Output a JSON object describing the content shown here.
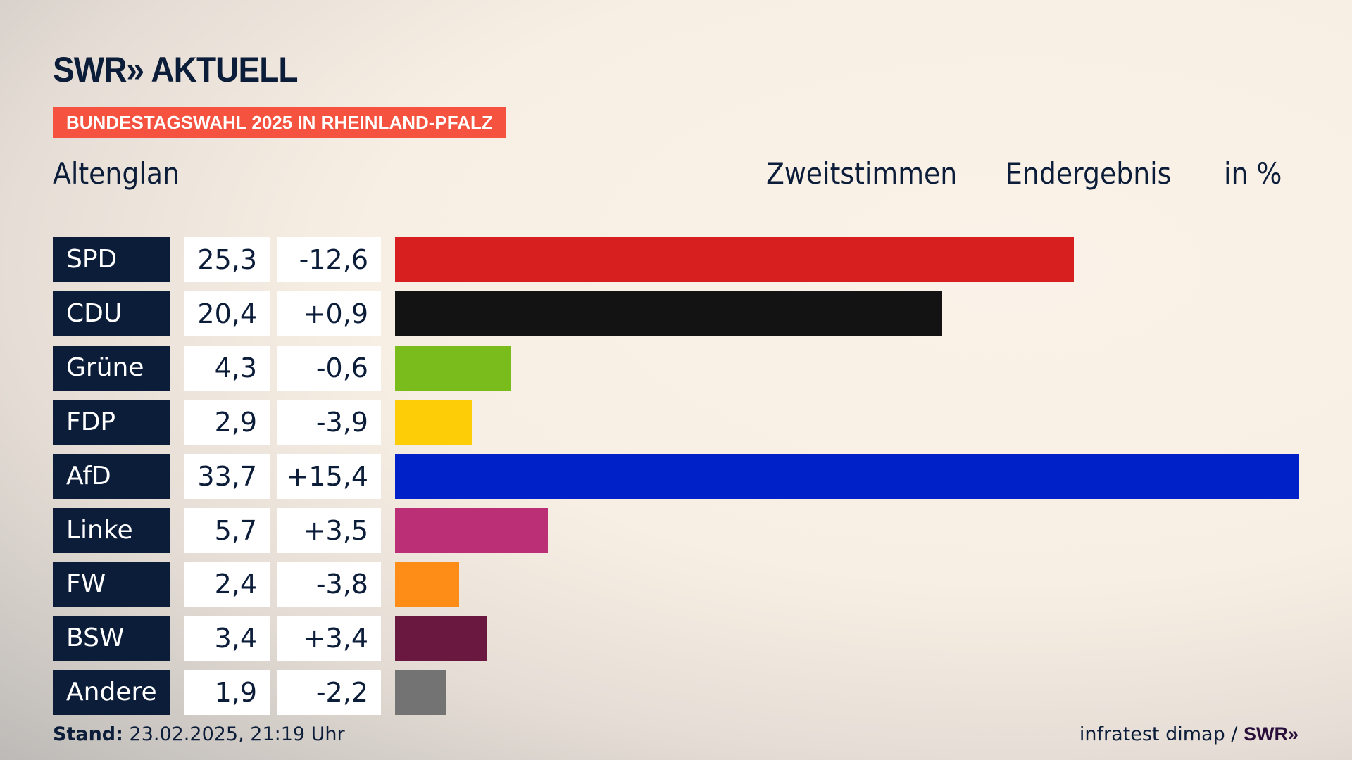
{
  "header": {
    "logo": "SWR» AKTUELL",
    "banner": "BUNDESTAGSWAHL 2025 IN RHEINLAND-PFALZ",
    "location": "Altenglan",
    "vote_type": "Zweitstimmen",
    "result_type": "Endergebnis",
    "unit": "in %"
  },
  "footer": {
    "stand_label": "Stand:",
    "stand_value": "23.02.2025, 21:19 Uhr",
    "source": "infratest dimap / ",
    "source_logo": "SWR»"
  },
  "chart_data": {
    "type": "bar",
    "orientation": "horizontal",
    "title": "Altenglan – Zweitstimmen Endergebnis in %",
    "xlim": [
      0,
      33.7
    ],
    "categories": [
      "SPD",
      "CDU",
      "Grüne",
      "FDP",
      "AfD",
      "Linke",
      "FW",
      "BSW",
      "Andere"
    ],
    "values": [
      25.3,
      20.4,
      4.3,
      2.9,
      33.7,
      5.7,
      2.4,
      3.4,
      1.9
    ],
    "value_labels": [
      "25,3",
      "20,4",
      "4,3",
      "2,9",
      "33,7",
      "5,7",
      "2,4",
      "3,4",
      "1,9"
    ],
    "diff_labels": [
      "-12,6",
      "+0,9",
      "-0,6",
      "-3,9",
      "+15,4",
      "+3,5",
      "-3,8",
      "+3,4",
      "-2,2"
    ],
    "colors": [
      "#d81f20",
      "#131313",
      "#79bc1b",
      "#fdcd08",
      "#0121c8",
      "#bb2f77",
      "#fd8d17",
      "#6a1840",
      "#737373"
    ]
  }
}
